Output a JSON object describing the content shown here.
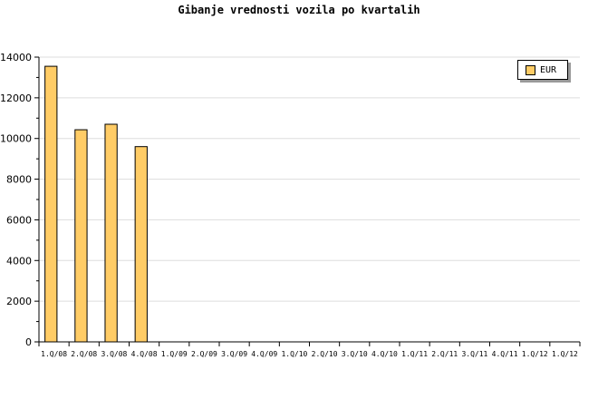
{
  "chart_data": {
    "type": "bar",
    "title": "Gibanje vrednosti vozila po kvartalih",
    "categories": [
      "1.Q/08",
      "2.Q/08",
      "3.Q/08",
      "4.Q/08",
      "1.Q/09",
      "2.Q/09",
      "3.Q/09",
      "4.Q/09",
      "1.Q/10",
      "2.Q/10",
      "3.Q/10",
      "4.Q/10",
      "1.Q/11",
      "2.Q/11",
      "3.Q/11",
      "4.Q/11",
      "1.Q/12",
      "1.Q/12"
    ],
    "series": [
      {
        "name": "EUR",
        "color": "#ffcc66",
        "values": [
          13550,
          10430,
          10700,
          9600,
          null,
          null,
          null,
          null,
          null,
          null,
          null,
          null,
          null,
          null,
          null,
          null,
          null,
          null
        ]
      }
    ],
    "ylim": [
      0,
      14000
    ],
    "yticks": [
      0,
      2000,
      4000,
      6000,
      8000,
      10000,
      12000,
      14000
    ],
    "grid": true,
    "legend": "top-right"
  }
}
